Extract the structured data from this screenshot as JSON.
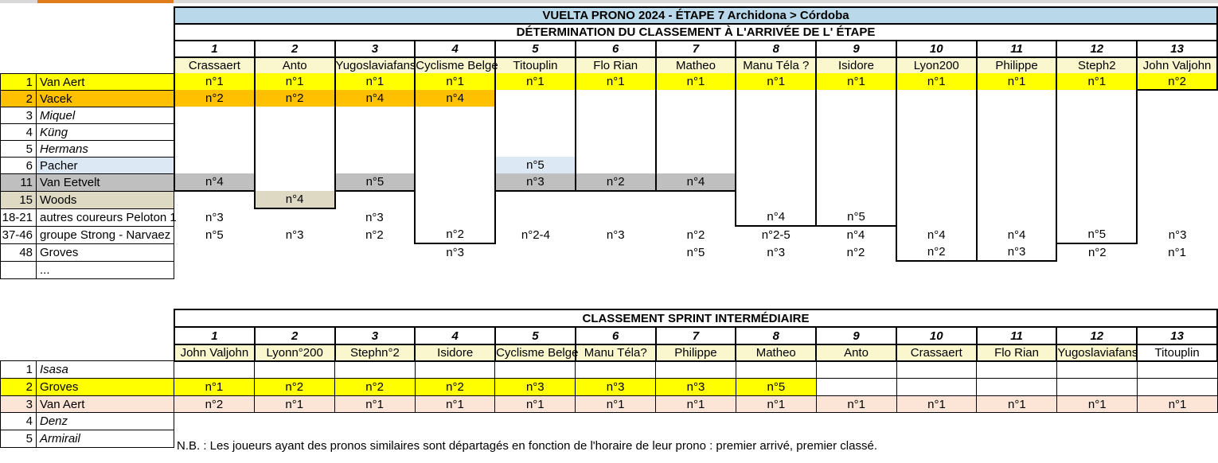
{
  "palette": {
    "Y": "#FFFF00",
    "O": "#FFC000",
    "G": "#BFBFBF",
    "T": "#DDD9C3",
    "B": "#DCE9F4",
    "P": "#FCE4D6"
  },
  "header_bg": "#FAF7CE",
  "strip": {
    "bar": "#D9D9D9",
    "accent": "#DE7C1A"
  },
  "note": "N.B. : Les joueurs ayant des pronos similaires sont départagés en fonction de l'horaire de leur prono : premier arrivé, premier classé.",
  "etape_table": {
    "title": "VUELTA PRONO 2024  - ÉTAPE 7 Archidona > Córdoba",
    "title_bg": "#B9D9EA",
    "subtitle": "DÉTERMINATION DU CLASSEMENT À L'ARRIVÉE DE L' ÉTAPE",
    "columns": [
      {
        "num": "1",
        "name": "Crassaert"
      },
      {
        "num": "2",
        "name": "Anto"
      },
      {
        "num": "3",
        "name": "Yugoslaviafans"
      },
      {
        "num": "4",
        "name": "Cyclisme Belge"
      },
      {
        "num": "5",
        "name": "Titouplin"
      },
      {
        "num": "6",
        "name": "Flo Rian"
      },
      {
        "num": "7",
        "name": "Matheo"
      },
      {
        "num": "8",
        "name": "Manu Téla ?"
      },
      {
        "num": "9",
        "name": "Isidore"
      },
      {
        "num": "10",
        "name": "Lyon200"
      },
      {
        "num": "11",
        "name": "Philippe"
      },
      {
        "num": "12",
        "name": "Steph2"
      },
      {
        "num": "13",
        "name": "John Valjohn"
      }
    ],
    "box_end": [
      6,
      7,
      6,
      9,
      6,
      6,
      6,
      8,
      8,
      10,
      10,
      9,
      0
    ],
    "rows": [
      {
        "rank": "1",
        "rider": "Van Aert",
        "bg": "Y",
        "cells": [
          [
            "n°1",
            "Y"
          ],
          [
            "n°1",
            "Y"
          ],
          [
            "n°1",
            "Y"
          ],
          [
            "n°1",
            "Y"
          ],
          [
            "n°1",
            "Y"
          ],
          [
            "n°1",
            "Y"
          ],
          [
            "n°1",
            "Y"
          ],
          [
            "n°1",
            "Y"
          ],
          [
            "n°1",
            "Y"
          ],
          [
            "n°1",
            "Y"
          ],
          [
            "n°1",
            "Y"
          ],
          [
            "n°1",
            "Y"
          ],
          [
            "n°2",
            "Y"
          ]
        ]
      },
      {
        "rank": "2",
        "rider": "Vacek",
        "bg": "O",
        "cells": [
          [
            "n°2",
            "O"
          ],
          [
            "n°2",
            "O"
          ],
          [
            "n°4",
            "O"
          ],
          [
            "n°4",
            "O"
          ],
          null,
          null,
          null,
          null,
          null,
          null,
          null,
          null,
          null
        ]
      },
      {
        "rank": "3",
        "rider": "Miquel",
        "italic": true,
        "cells": [
          null,
          null,
          null,
          null,
          null,
          null,
          null,
          null,
          null,
          null,
          null,
          null,
          null
        ]
      },
      {
        "rank": "4",
        "rider": "Küng",
        "italic": true,
        "cells": [
          null,
          null,
          null,
          null,
          null,
          null,
          null,
          null,
          null,
          null,
          null,
          null,
          null
        ]
      },
      {
        "rank": "5",
        "rider": "Hermans",
        "italic": true,
        "cells": [
          null,
          null,
          null,
          null,
          null,
          null,
          null,
          null,
          null,
          null,
          null,
          null,
          null
        ]
      },
      {
        "rank": "6",
        "rider": "Pacher",
        "bg": "B",
        "rank_bg": "#FFFFFF",
        "cells": [
          null,
          null,
          null,
          null,
          [
            "n°5",
            "B"
          ],
          null,
          null,
          null,
          null,
          null,
          null,
          null,
          null
        ]
      },
      {
        "rank": "11",
        "rider": "Van Eetvelt",
        "bg": "G",
        "cells": [
          [
            "n°4",
            "G"
          ],
          null,
          [
            "n°5",
            "G"
          ],
          null,
          [
            "n°3",
            "G"
          ],
          [
            "n°2",
            "G"
          ],
          [
            "n°4",
            "G"
          ],
          null,
          null,
          null,
          null,
          null,
          null
        ]
      },
      {
        "rank": "15",
        "rider": "Woods",
        "bg": "T",
        "cells": [
          null,
          [
            "n°4",
            "T"
          ],
          null,
          null,
          null,
          null,
          null,
          null,
          null,
          null,
          null,
          null,
          null
        ]
      },
      {
        "rank": "18-21",
        "rider": "autres coureurs Peloton 1",
        "cells": [
          [
            "n°3",
            null
          ],
          null,
          [
            "n°3",
            null
          ],
          null,
          null,
          null,
          null,
          [
            "n°4",
            null
          ],
          [
            "n°5",
            null
          ],
          null,
          null,
          null,
          null
        ]
      },
      {
        "rank": "37-46",
        "rider": "groupe Strong - Narvaez",
        "cells": [
          [
            "n°5",
            null
          ],
          [
            "n°3",
            null
          ],
          [
            "n°2",
            null
          ],
          [
            "n°2",
            null
          ],
          [
            "n°2-4",
            null
          ],
          [
            "n°3",
            null
          ],
          [
            "n°2",
            null
          ],
          [
            "n°2-5",
            null
          ],
          [
            "n°4",
            null
          ],
          [
            "n°4",
            null
          ],
          [
            "n°4",
            null
          ],
          [
            "n°5",
            null
          ],
          [
            "n°3",
            null
          ]
        ]
      },
      {
        "rank": "48",
        "rider": "Groves",
        "cells": [
          null,
          null,
          null,
          [
            "n°3",
            null
          ],
          null,
          null,
          [
            "n°5",
            null
          ],
          [
            "n°3",
            null
          ],
          [
            "n°2",
            null
          ],
          [
            "n°2",
            null
          ],
          [
            "n°3",
            null
          ],
          [
            "n°2",
            null
          ],
          [
            "n°1",
            null
          ]
        ]
      },
      {
        "rank": "",
        "rider": "...",
        "cells": [
          null,
          null,
          null,
          null,
          null,
          null,
          null,
          null,
          null,
          null,
          null,
          null,
          null
        ]
      }
    ]
  },
  "sprint_table": {
    "title": "CLASSEMENT SPRINT INTERMÉDIAIRE",
    "title_bg": "#FFFFFF",
    "columns": [
      {
        "num": "1",
        "name": "John Valjohn"
      },
      {
        "num": "2",
        "name": "Lyonn°200"
      },
      {
        "num": "3",
        "name": "Stephn°2"
      },
      {
        "num": "4",
        "name": "Isidore"
      },
      {
        "num": "5",
        "name": "Cyclisme Belge"
      },
      {
        "num": "6",
        "name": "Manu Téla?"
      },
      {
        "num": "7",
        "name": "Philippe"
      },
      {
        "num": "8",
        "name": "Matheo"
      },
      {
        "num": "9",
        "name": "Anto"
      },
      {
        "num": "10",
        "name": "Crassaert"
      },
      {
        "num": "11",
        "name": "Flo Rian"
      },
      {
        "num": "12",
        "name": "Yugoslaviafans"
      },
      {
        "num": "13",
        "name": "Titouplin",
        "bg": "#FFFFFF"
      }
    ],
    "rows": [
      {
        "rank": "1",
        "rider": "Isasa",
        "italic": true,
        "cells": [
          null,
          null,
          null,
          null,
          null,
          null,
          null,
          null,
          null,
          null,
          null,
          null,
          null
        ]
      },
      {
        "rank": "2",
        "rider": "Groves",
        "bg": "Y",
        "cells": [
          [
            "n°1",
            "Y"
          ],
          [
            "n°2",
            "Y"
          ],
          [
            "n°2",
            "Y"
          ],
          [
            "n°2",
            "Y"
          ],
          [
            "n°3",
            "Y"
          ],
          [
            "n°3",
            "Y"
          ],
          [
            "n°3",
            "Y"
          ],
          [
            "n°5",
            "Y"
          ],
          null,
          null,
          null,
          null,
          null
        ]
      },
      {
        "rank": "3",
        "rider": "Van Aert",
        "bg": "P",
        "cells": [
          [
            "n°2",
            "P"
          ],
          [
            "n°1",
            "P"
          ],
          [
            "n°1",
            "P"
          ],
          [
            "n°1",
            "P"
          ],
          [
            "n°1",
            "P"
          ],
          [
            "n°1",
            "P"
          ],
          [
            "n°1",
            "P"
          ],
          [
            "n°1",
            "P"
          ],
          [
            "n°1",
            "P"
          ],
          [
            "n°1",
            "P"
          ],
          [
            "n°1",
            "P"
          ],
          [
            "n°1",
            "P"
          ],
          [
            "n°1",
            "P"
          ]
        ]
      },
      {
        "rank": "4",
        "rider": "Denz",
        "italic": true
      },
      {
        "rank": "5",
        "rider": "Armirail",
        "italic": true
      }
    ]
  }
}
